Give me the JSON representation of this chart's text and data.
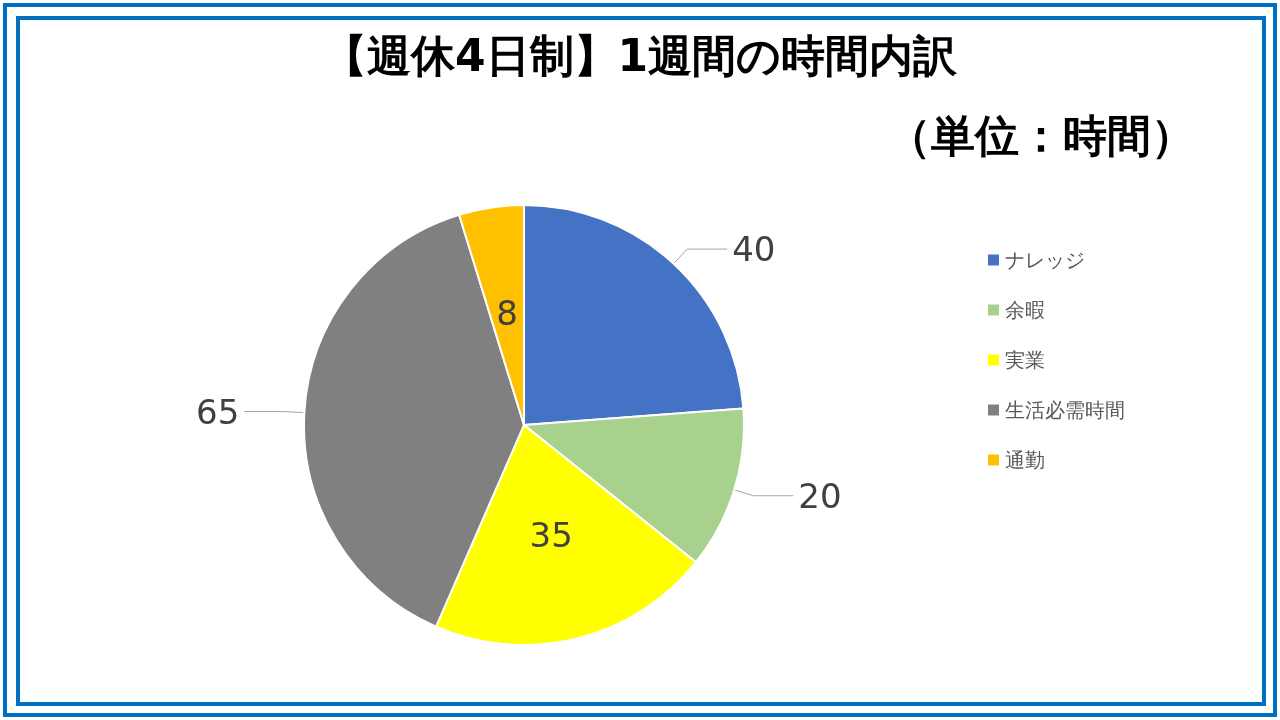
{
  "chart_data": {
    "type": "pie",
    "title": "【週休4日制】1週間の時間内訳",
    "subtitle": "（単位：時間）",
    "categories": [
      "ナレッジ",
      "余暇",
      "実業",
      "生活必需時間",
      "通勤"
    ],
    "values": [
      40,
      20,
      35,
      65,
      8
    ],
    "colors": [
      "#4472c4",
      "#a9d18e",
      "#ffff00",
      "#808080",
      "#ffc000"
    ],
    "data_labels": true,
    "legend": "right"
  }
}
